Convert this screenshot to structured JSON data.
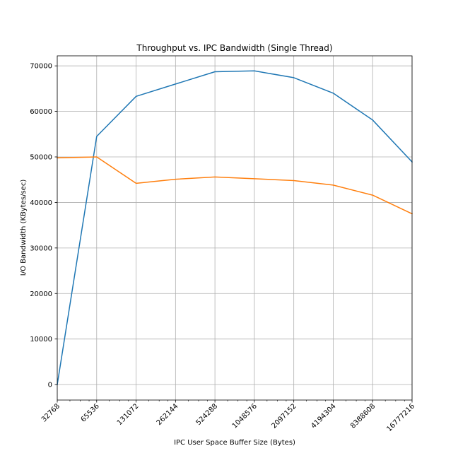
{
  "chart_data": {
    "type": "line",
    "title": "Throughput vs. IPC Bandwidth (Single Thread)",
    "xlabel": "IPC User Space Buffer Size (Bytes)",
    "ylabel": "I/O Bandwidth (KBytes/sec)",
    "x_scale": "log2",
    "x": [
      32768,
      65536,
      131072,
      262144,
      524288,
      1048576,
      2097152,
      4194304,
      8388608,
      16777216
    ],
    "x_tick_labels": [
      "32768",
      "65536",
      "131072",
      "262144",
      "524288",
      "1048576",
      "2097152",
      "4194304",
      "8388608",
      "16777216"
    ],
    "y_ticks": [
      0,
      10000,
      20000,
      30000,
      40000,
      50000,
      60000,
      70000
    ],
    "y_tick_labels": [
      "0",
      "10000",
      "20000",
      "30000",
      "40000",
      "50000",
      "60000",
      "70000"
    ],
    "ylim": [
      -3400,
      72200
    ],
    "grid": true,
    "series": [
      {
        "color": "#1f77b4",
        "values": [
          0,
          54500,
          63300,
          66000,
          68700,
          68900,
          67400,
          64000,
          58100,
          48900
        ]
      },
      {
        "color": "#ff7f0e",
        "values": [
          49800,
          50000,
          44200,
          45100,
          45600,
          45200,
          44800,
          43800,
          41600,
          37500
        ]
      }
    ]
  }
}
